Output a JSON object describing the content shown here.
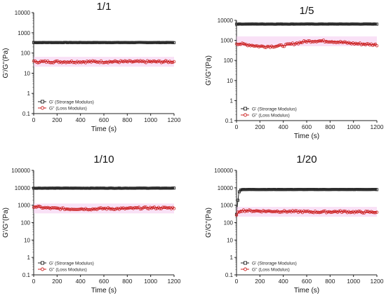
{
  "chart_data": [
    {
      "type": "line",
      "title": "1/1",
      "xlabel": "Time (s)",
      "ylabel": "G'/G''(Pa)",
      "xlim": [
        0,
        1200
      ],
      "ylim": [
        0.1,
        10000
      ],
      "yscale": "log",
      "xticks": [
        0,
        200,
        400,
        600,
        800,
        1000,
        1200
      ],
      "yticks": [
        0.1,
        1,
        10,
        100,
        1000,
        10000
      ],
      "ytick_labels": [
        "0.1",
        "1",
        "10",
        "100",
        "1000",
        "10000"
      ],
      "legend_position": "bottom-left",
      "series": [
        {
          "name": "G' (Strorage Modulus)",
          "color": "#222222",
          "marker": "square-open",
          "x": [
            0,
            100,
            200,
            300,
            400,
            500,
            600,
            700,
            800,
            900,
            1000,
            1100,
            1200
          ],
          "y": [
            330,
            330,
            330,
            330,
            330,
            330,
            330,
            330,
            330,
            330,
            330,
            330,
            330
          ]
        },
        {
          "name": "G'' (Loss Modulus)",
          "color": "#cc2222",
          "marker": "circle-open",
          "x": [
            0,
            100,
            200,
            300,
            400,
            500,
            600,
            700,
            800,
            900,
            1000,
            1100,
            1200
          ],
          "y": [
            37,
            37,
            37,
            37,
            37,
            37,
            37,
            37,
            37,
            37,
            37,
            37,
            37
          ]
        }
      ]
    },
    {
      "type": "line",
      "title": "1/5",
      "xlabel": "Time (s)",
      "ylabel": "G'/G''(Pa)",
      "xlim": [
        0,
        1200
      ],
      "ylim": [
        0.1,
        10000
      ],
      "yscale": "log",
      "xticks": [
        0,
        200,
        400,
        600,
        800,
        1000,
        1200
      ],
      "yticks": [
        0.1,
        1,
        10,
        100,
        1000,
        10000
      ],
      "ytick_labels": [
        "0.1",
        "1",
        "10",
        "100",
        "1000",
        "10000"
      ],
      "legend_position": "bottom-left",
      "series": [
        {
          "name": "G' (Strorage Modulus)",
          "color": "#222222",
          "marker": "square-open",
          "x": [
            0,
            100,
            200,
            300,
            400,
            500,
            600,
            700,
            800,
            900,
            1000,
            1100,
            1200
          ],
          "y": [
            6500,
            6500,
            6500,
            6500,
            6500,
            6500,
            6500,
            6500,
            6500,
            6500,
            6500,
            6500,
            6500
          ]
        },
        {
          "name": "G'' (Loss Modulus)",
          "color": "#cc2222",
          "marker": "circle-open",
          "x": [
            0,
            100,
            200,
            300,
            400,
            500,
            600,
            700,
            800,
            900,
            1000,
            1100,
            1200
          ],
          "y": [
            700,
            600,
            500,
            500,
            550,
            700,
            900,
            950,
            900,
            800,
            700,
            650,
            600
          ]
        }
      ]
    },
    {
      "type": "line",
      "title": "1/10",
      "xlabel": "Time (s)",
      "ylabel": "G'/G''(Pa)",
      "xlim": [
        0,
        1200
      ],
      "ylim": [
        0.1,
        100000
      ],
      "yscale": "log",
      "xticks": [
        0,
        200,
        400,
        600,
        800,
        1000,
        1200
      ],
      "yticks": [
        0.1,
        1,
        10,
        100,
        1000,
        10000,
        100000
      ],
      "ytick_labels": [
        "0.1",
        "1",
        "10",
        "100",
        "1000",
        "10000",
        "100000"
      ],
      "legend_position": "bottom-left",
      "series": [
        {
          "name": "G' (Strorage Modulus)",
          "color": "#222222",
          "marker": "square-open",
          "x": [
            0,
            100,
            200,
            300,
            400,
            500,
            600,
            700,
            800,
            900,
            1000,
            1100,
            1200
          ],
          "y": [
            9500,
            9500,
            9500,
            9500,
            9500,
            9500,
            9500,
            9500,
            9500,
            9500,
            9500,
            9500,
            9500
          ]
        },
        {
          "name": "G'' (Loss Modulus)",
          "color": "#cc2222",
          "marker": "circle-open",
          "x": [
            0,
            100,
            200,
            300,
            400,
            500,
            600,
            700,
            800,
            900,
            1000,
            1100,
            1200
          ],
          "y": [
            850,
            700,
            650,
            600,
            620,
            600,
            650,
            620,
            650,
            680,
            700,
            700,
            700
          ]
        }
      ]
    },
    {
      "type": "line",
      "title": "1/20",
      "xlabel": "Time (s)",
      "ylabel": "G'/G''(Pa)",
      "xlim": [
        0,
        1200
      ],
      "ylim": [
        0.1,
        100000
      ],
      "yscale": "log",
      "xticks": [
        0,
        200,
        400,
        600,
        800,
        1000,
        1200
      ],
      "yticks": [
        0.1,
        1,
        10,
        100,
        1000,
        10000,
        100000
      ],
      "ytick_labels": [
        "0.1",
        "1",
        "10",
        "100",
        "1000",
        "10000",
        "100000"
      ],
      "legend_position": "bottom-left",
      "series": [
        {
          "name": "G' (Strorage Modulus)",
          "color": "#222222",
          "marker": "square-open",
          "x": [
            0,
            10,
            20,
            30,
            50,
            100,
            200,
            300,
            400,
            500,
            600,
            700,
            800,
            900,
            1000,
            1100,
            1200
          ],
          "y": [
            300,
            1500,
            5000,
            7500,
            8000,
            8000,
            8000,
            8000,
            8000,
            8000,
            8000,
            8000,
            8000,
            8000,
            8000,
            8000,
            8000
          ]
        },
        {
          "name": "G'' (Loss Modulus)",
          "color": "#cc2222",
          "marker": "circle-open",
          "x": [
            0,
            10,
            30,
            50,
            100,
            200,
            300,
            400,
            500,
            600,
            700,
            800,
            900,
            1000,
            1100,
            1200
          ],
          "y": [
            250,
            350,
            480,
            500,
            480,
            460,
            450,
            440,
            430,
            420,
            410,
            420,
            430,
            410,
            400,
            400
          ]
        }
      ]
    }
  ]
}
